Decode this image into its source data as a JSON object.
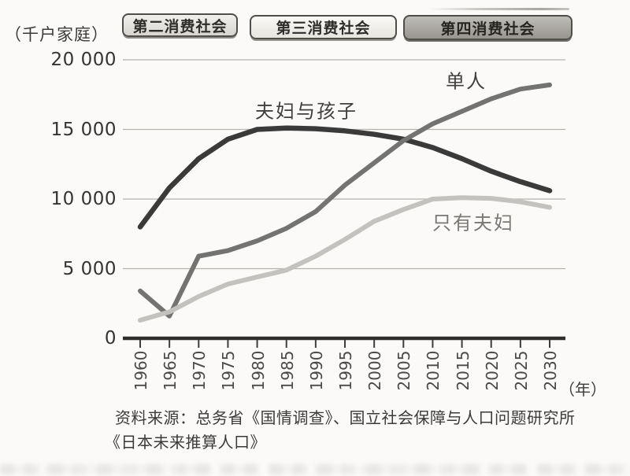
{
  "era_banners": [
    {
      "label": "第二消费社会",
      "fill": "#dcd9d4"
    },
    {
      "label": "第三消费社会",
      "fill": "#efede9"
    },
    {
      "label": "第四消费社会",
      "fill": "#a8a5a0"
    }
  ],
  "chart_data": {
    "type": "line",
    "title": "",
    "ylabel": "（千户家庭）",
    "x_suffix": "（年）",
    "x": [
      1960,
      1965,
      1970,
      1975,
      1980,
      1985,
      1990,
      1995,
      2000,
      2005,
      2010,
      2015,
      2020,
      2025,
      2030
    ],
    "x_tick_labels": [
      "1960",
      "1965",
      "1970",
      "1975",
      "1980",
      "1985",
      "1990",
      "1995",
      "2000",
      "2005",
      "2010",
      "2015",
      "2020",
      "2025",
      "2030"
    ],
    "ylim": [
      0,
      20000
    ],
    "y_ticks": [
      0,
      5000,
      10000,
      15000,
      20000
    ],
    "y_tick_labels": [
      "0",
      "5 000",
      "10 000",
      "15 000",
      "20 000"
    ],
    "grid": true,
    "legend_position": "inline-labels",
    "series": [
      {
        "name": "夫妇与孩子",
        "color": "#3a3a3a",
        "values": [
          8000,
          10800,
          12900,
          14300,
          15000,
          15100,
          15050,
          14900,
          14650,
          14300,
          13700,
          12900,
          12000,
          11250,
          10600
        ]
      },
      {
        "name": "单人",
        "color": "#737371",
        "values": [
          3400,
          1600,
          5900,
          6300,
          7000,
          7900,
          9100,
          11000,
          12600,
          14200,
          15400,
          16300,
          17200,
          17900,
          18200
        ]
      },
      {
        "name": "只有夫妇",
        "color": "#c4c2bf",
        "values": [
          1300,
          1900,
          3000,
          3900,
          4400,
          4900,
          5900,
          7100,
          8400,
          9250,
          10000,
          10100,
          10050,
          9800,
          9400
        ]
      }
    ],
    "annotations": [
      {
        "text": "夫妇与孩子",
        "x": 389,
        "y": 139,
        "color": "#413f3d"
      },
      {
        "text": "单人",
        "x": 592,
        "y": 101,
        "color": "#413f3d"
      },
      {
        "text": "只有夫妇",
        "x": 601,
        "y": 281,
        "color": "#7a7874"
      }
    ]
  },
  "source": {
    "line1": "资料来源：总务省《国情调查》、国立社会保障与人口问题研究所",
    "line2": "《日本未来推算人口》"
  }
}
